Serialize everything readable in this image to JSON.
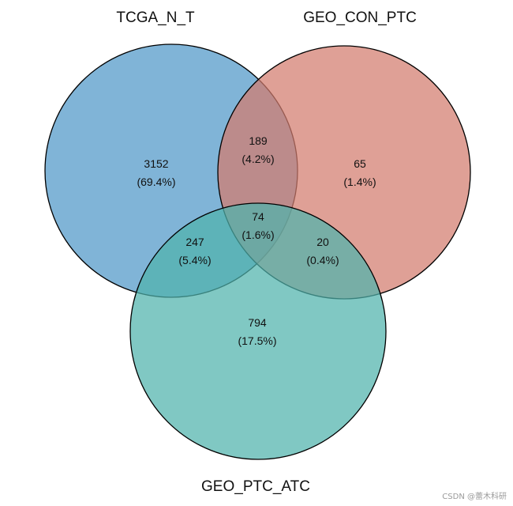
{
  "sets": [
    {
      "id": "a",
      "label": "TCGA_N_T",
      "color": "#4f97c8"
    },
    {
      "id": "b",
      "label": "GEO_CON_PTC",
      "color": "#d37b6d"
    },
    {
      "id": "c",
      "label": "GEO_PTC_ATC",
      "color": "#4fb3ac"
    }
  ],
  "regions": {
    "a_only": {
      "count": "3152",
      "percent": "(69.4%)"
    },
    "b_only": {
      "count": "65",
      "percent": "(1.4%)"
    },
    "c_only": {
      "count": "794",
      "percent": "(17.5%)"
    },
    "ab": {
      "count": "189",
      "percent": "(4.2%)"
    },
    "ac": {
      "count": "247",
      "percent": "(5.4%)"
    },
    "bc": {
      "count": "20",
      "percent": "(0.4%)"
    },
    "abc": {
      "count": "74",
      "percent": "(1.6%)"
    }
  },
  "watermark": "CSDN @蕾木科研"
}
